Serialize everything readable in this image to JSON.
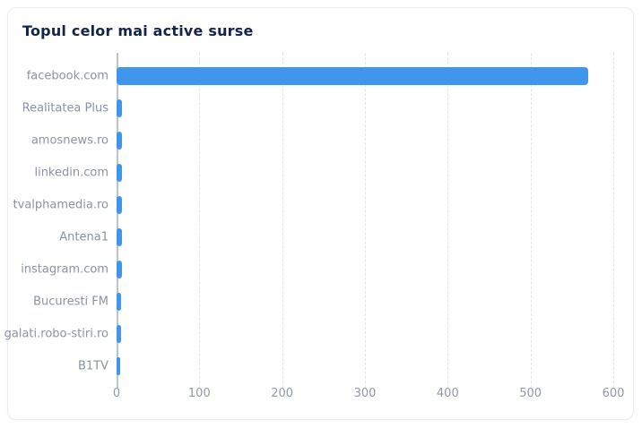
{
  "card": {
    "title": "Topul celor mai active surse"
  },
  "chart_data": {
    "type": "bar",
    "orientation": "horizontal",
    "title": "Topul celor mai active surse",
    "xlabel": "",
    "ylabel": "",
    "categories": [
      "facebook.com",
      "Realitatea Plus",
      "amosnews.ro",
      "linkedin.com",
      "tvalphamedia.ro",
      "Antena1",
      "instagram.com",
      "Bucuresti FM",
      "galati.robo-stiri.ro",
      "B1TV"
    ],
    "values": [
      570,
      7,
      7,
      6,
      6,
      6,
      6,
      5,
      5,
      4
    ],
    "xlim": [
      0,
      600
    ],
    "x_ticks": [
      0,
      100,
      200,
      300,
      400,
      500,
      600
    ],
    "grid": "vertical-dashed",
    "legend": "none",
    "colors": {
      "bar": "#3f96ec",
      "title": "#14254c",
      "category_label": "#8a93a4",
      "tick_label": "#9199a8",
      "axis_line": "#b9c4d3",
      "gridline": "#e2e6ec",
      "card_border": "#e9edf3"
    }
  }
}
